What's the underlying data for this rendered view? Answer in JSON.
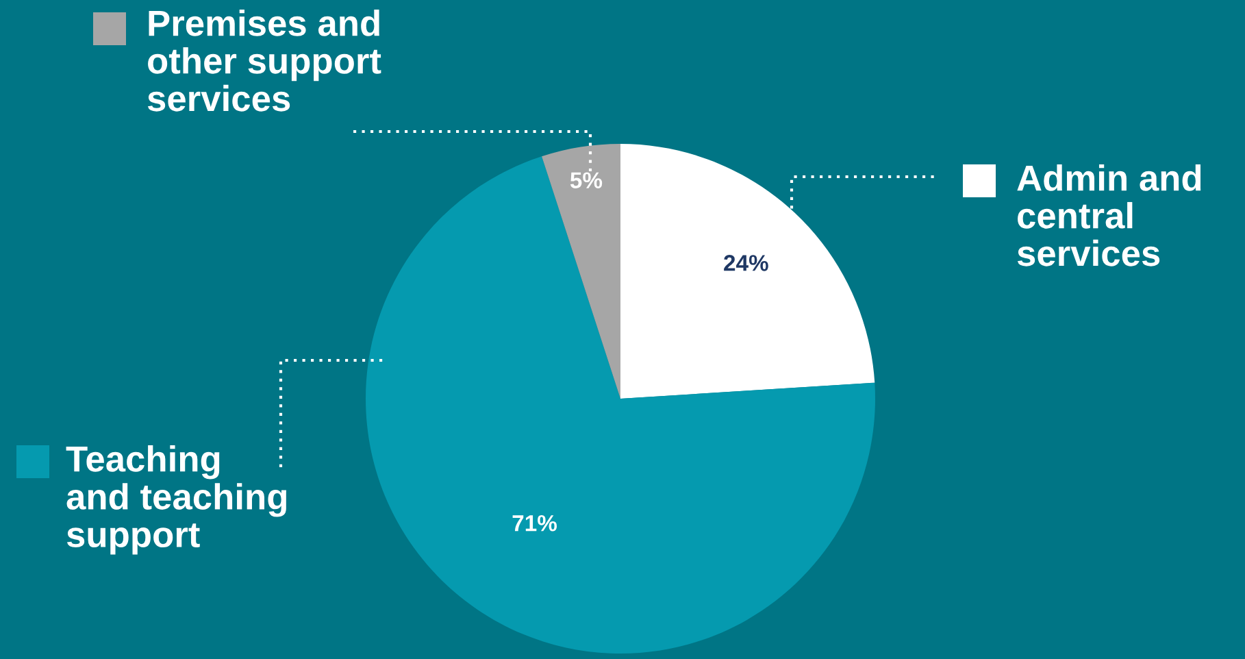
{
  "chart_data": {
    "type": "pie",
    "categories": [
      "Admin and\ncentral\nservices",
      "Teaching\nand teaching\nsupport",
      "Premises and\nother support\nservices"
    ],
    "values": [
      24,
      71,
      5
    ],
    "colors": [
      "#ffffff",
      "#059aaf",
      "#a6a6a6"
    ],
    "value_labels": [
      "24%",
      "71%",
      "5%"
    ],
    "legend": "left"
  }
}
